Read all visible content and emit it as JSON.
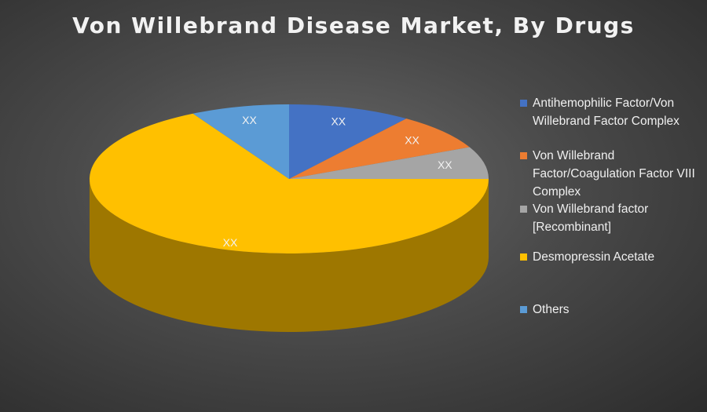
{
  "chart_data": {
    "type": "pie",
    "title": "Von Willebrand Disease Market, By Drugs",
    "categories": [
      "Antihemophilic Factor/Von Willebrand Factor Complex",
      "Von Willebrand Factor/Coagulation Factor VIII Complex",
      "Von Willebrand factor [Recombinant]",
      "Desmopressin Acetate",
      "Others"
    ],
    "values": [
      10,
      8,
      7,
      67,
      8
    ],
    "data_labels": [
      "XX",
      "XX",
      "XX",
      "XX",
      "XX"
    ],
    "colors": [
      "#4472C4",
      "#ED7D31",
      "#A5A5A5",
      "#FFC000",
      "#5B9BD5"
    ],
    "legend_position": "right",
    "three_d": true
  }
}
